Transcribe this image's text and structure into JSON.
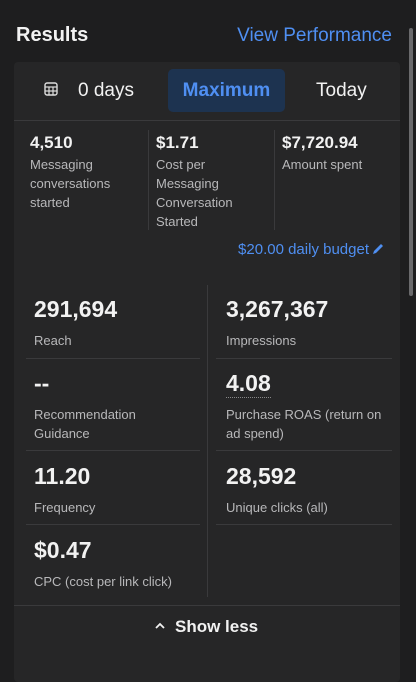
{
  "header": {
    "title": "Results",
    "action": "View Performance"
  },
  "tabs": [
    "0 days",
    "Maximum",
    "Today"
  ],
  "summary": [
    {
      "value": "4,510",
      "label": "Messaging conversations started"
    },
    {
      "value": "$1.71",
      "label": "Cost per Messaging Conversation Started"
    },
    {
      "value": "$7,720.94",
      "label": "Amount spent"
    }
  ],
  "budget": "$20.00 daily budget",
  "metrics": [
    {
      "value": "291,694",
      "label": "Reach"
    },
    {
      "value": "3,267,367",
      "label": "Impressions"
    },
    {
      "value": "--",
      "label": "Recommendation Guidance"
    },
    {
      "value": "4.08",
      "label": "Purchase ROAS (return on ad spend)"
    },
    {
      "value": "11.20",
      "label": "Frequency"
    },
    {
      "value": "28,592",
      "label": "Unique clicks (all)"
    },
    {
      "value": "$0.47",
      "label": "CPC (cost per link click)"
    }
  ],
  "footer": "Show less"
}
